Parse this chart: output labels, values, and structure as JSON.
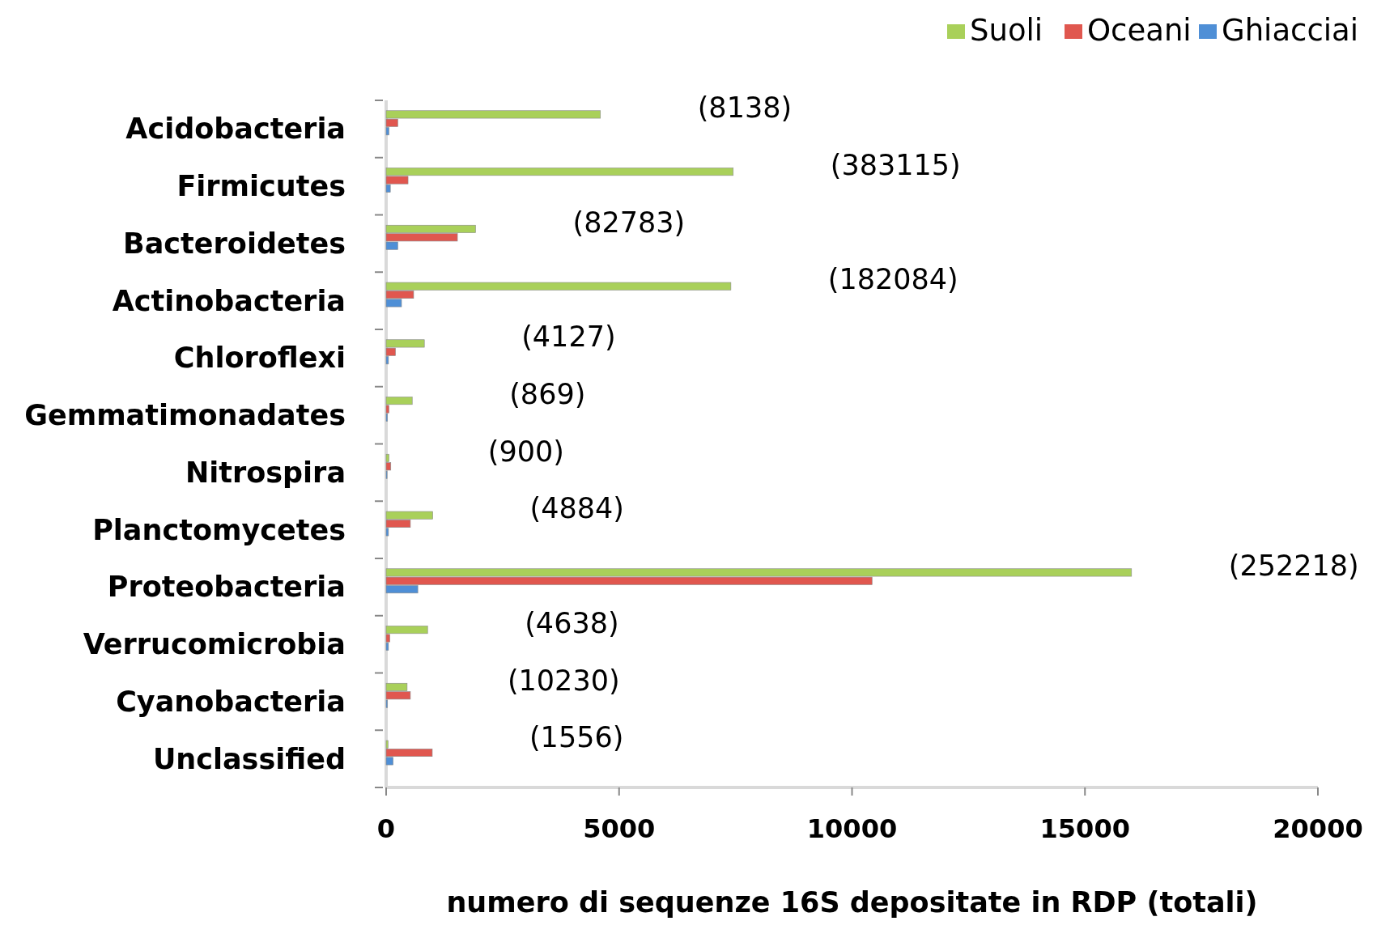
{
  "chart_data": {
    "type": "bar",
    "orientation": "horizontal",
    "xlabel": "numero di sequenze 16S depositate in RDP (totali)",
    "categories": [
      "Acidobacteria",
      "Firmicutes",
      "Bacteroidetes",
      "Actinobacteria",
      "Chloroflexi",
      "Gemmatimonadates",
      "Nitrospira",
      "Planctomycetes",
      "Proteobacteria",
      "Verrucomicrobia",
      "Cyanobacteria",
      "Unclassified"
    ],
    "series": [
      {
        "name": "Suoli",
        "color": "#a9d05a",
        "values": [
          4600,
          7450,
          1920,
          7400,
          820,
          560,
          60,
          1000,
          16000,
          890,
          450,
          40
        ]
      },
      {
        "name": "Oceani",
        "color": "#e0574f",
        "values": [
          250,
          470,
          1530,
          590,
          200,
          60,
          100,
          520,
          10430,
          80,
          520,
          990
        ]
      },
      {
        "name": "Ghiacciai",
        "color": "#4f8fd6",
        "values": [
          60,
          90,
          250,
          330,
          50,
          30,
          20,
          50,
          680,
          50,
          30,
          150
        ]
      }
    ],
    "xlim": [
      0,
      20000
    ],
    "xticks": [
      0,
      5000,
      10000,
      15000,
      20000
    ],
    "legend": "top right",
    "annotations": [
      "(8138)",
      "(383115)",
      "(82783)",
      "(182084)",
      "(4127)",
      "(869)",
      "(900)",
      "(4884)",
      "(252218)",
      "(4638)",
      "(10230)",
      "(1556)"
    ]
  }
}
